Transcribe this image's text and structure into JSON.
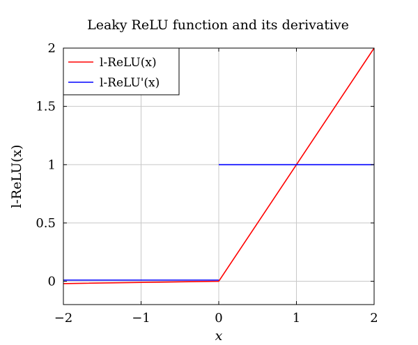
{
  "chart_data": {
    "type": "line",
    "title": "Leaky ReLU function and its derivative",
    "xlabel": "x",
    "ylabel": "l-ReLU(x)",
    "xlim": [
      -2,
      2
    ],
    "ylim": [
      -0.2,
      2
    ],
    "xticks": [
      -2,
      -1,
      0,
      1,
      2
    ],
    "xtick_labels": [
      "−2",
      "−1",
      "0",
      "1",
      "2"
    ],
    "yticks": [
      0,
      0.5,
      1,
      1.5,
      2
    ],
    "ytick_labels": [
      "0",
      "0.5",
      "1",
      "1.5",
      "2"
    ],
    "grid": true,
    "legend_position": "top-left",
    "series": [
      {
        "name": "l-ReLU(x)",
        "color": "#ff0000",
        "x": [
          -2,
          0,
          2
        ],
        "y": [
          -0.02,
          0,
          2
        ]
      },
      {
        "name": "l-ReLU'(x)",
        "color": "#0000ff",
        "segments": [
          {
            "x": [
              -2,
              0
            ],
            "y": [
              0.01,
              0.01
            ]
          },
          {
            "x": [
              0,
              2
            ],
            "y": [
              1,
              1
            ]
          }
        ]
      }
    ]
  }
}
